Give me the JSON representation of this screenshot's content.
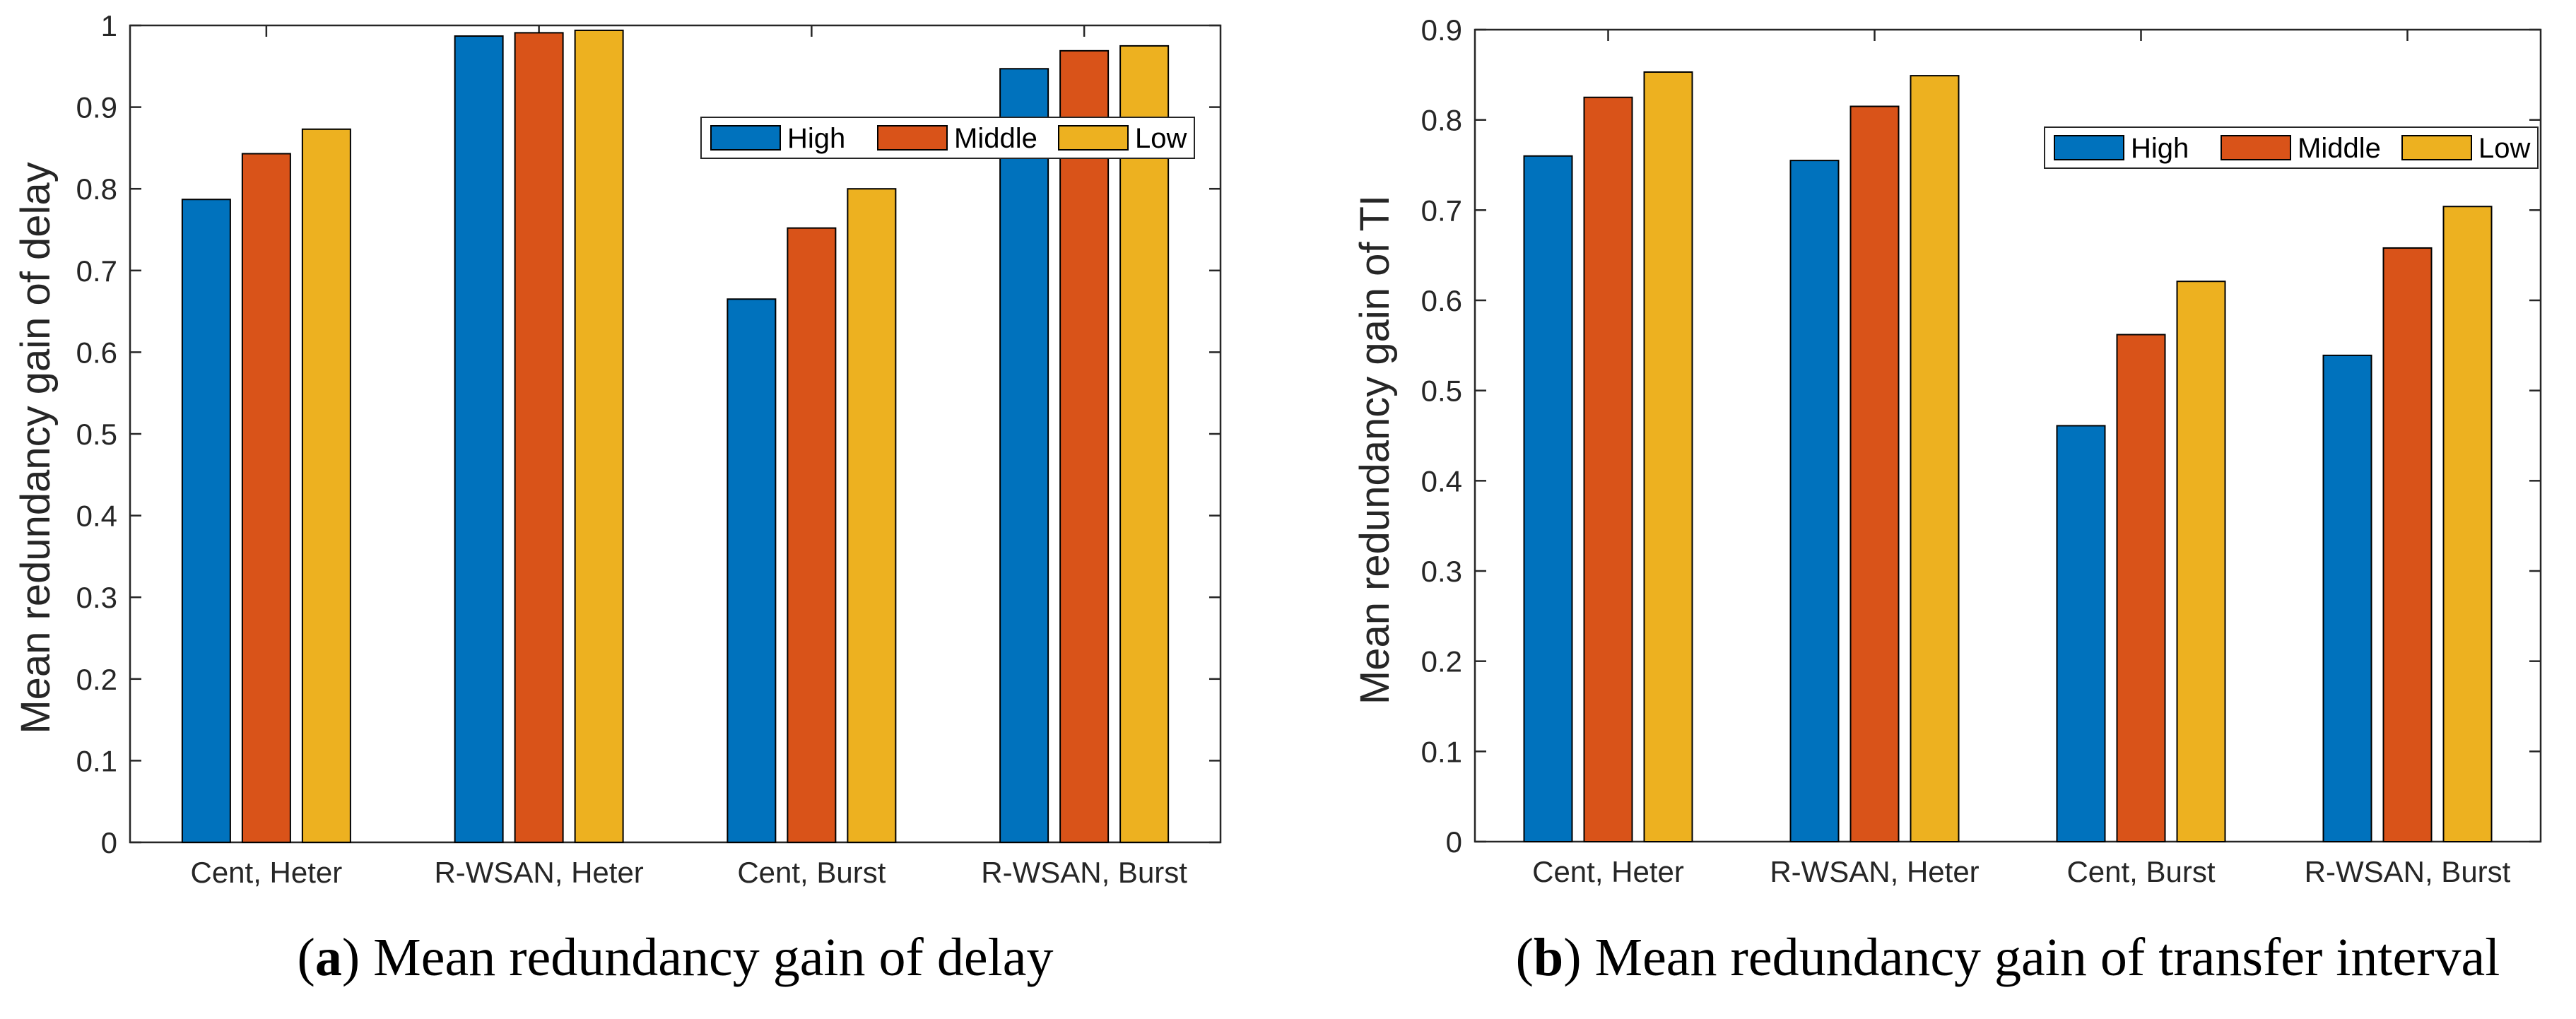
{
  "chart_data": [
    {
      "type": "bar",
      "title": "",
      "xlabel": "",
      "ylabel": "Mean redundancy gain of delay",
      "caption_letter": "a",
      "caption_text": "Mean redundancy gain of delay",
      "categories": [
        "Cent, Heter",
        "R-WSAN, Heter",
        "Cent, Burst",
        "R-WSAN, Burst"
      ],
      "series": [
        {
          "name": "High",
          "color": "#0072BD",
          "values": [
            0.787,
            0.987,
            0.665,
            0.947
          ]
        },
        {
          "name": "Middle",
          "color": "#D95319",
          "values": [
            0.843,
            0.991,
            0.752,
            0.969
          ]
        },
        {
          "name": "Low",
          "color": "#EDB120",
          "values": [
            0.873,
            0.994,
            0.8,
            0.975
          ]
        }
      ],
      "ylim": [
        0,
        1
      ],
      "yticks": [
        "0",
        "0.1",
        "0.2",
        "0.3",
        "0.4",
        "0.5",
        "0.6",
        "0.7",
        "0.8",
        "0.9",
        "1"
      ],
      "grid": false,
      "legend": "top-right"
    },
    {
      "type": "bar",
      "title": "",
      "xlabel": "",
      "ylabel": "Mean redundancy gain of TI",
      "caption_letter": "b",
      "caption_text": "Mean redundancy gain of transfer interval",
      "categories": [
        "Cent, Heter",
        "R-WSAN, Heter",
        "Cent, Burst",
        "R-WSAN, Burst"
      ],
      "series": [
        {
          "name": "High",
          "color": "#0072BD",
          "values": [
            0.76,
            0.755,
            0.461,
            0.539
          ]
        },
        {
          "name": "Middle",
          "color": "#D95319",
          "values": [
            0.825,
            0.815,
            0.562,
            0.658
          ]
        },
        {
          "name": "Low",
          "color": "#EDB120",
          "values": [
            0.853,
            0.849,
            0.621,
            0.704
          ]
        }
      ],
      "ylim": [
        0,
        0.9
      ],
      "yticks": [
        "0",
        "0.1",
        "0.2",
        "0.3",
        "0.4",
        "0.5",
        "0.6",
        "0.7",
        "0.8",
        "0.9"
      ],
      "grid": false,
      "legend": "top-right"
    }
  ]
}
